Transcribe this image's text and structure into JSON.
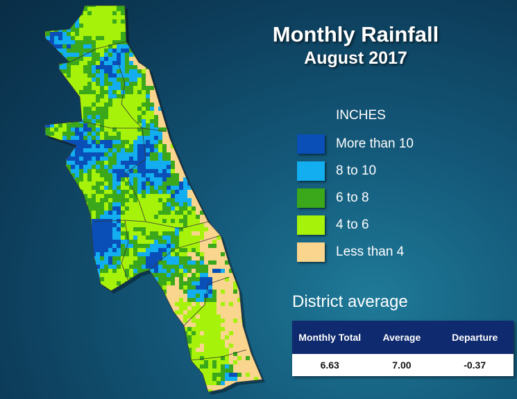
{
  "title": "Monthly Rainfall",
  "subtitle": "August 2017",
  "legend": {
    "heading": "INCHES",
    "items": [
      {
        "label": "More than 10",
        "color": "#0a4fb8"
      },
      {
        "label": "8 to 10",
        "color": "#12aef0"
      },
      {
        "label": "6 to 8",
        "color": "#3aa81a"
      },
      {
        "label": "4 to 6",
        "color": "#a6f20a"
      },
      {
        "label": "Less than 4",
        "color": "#fad58e"
      }
    ]
  },
  "district_average": {
    "heading": "District average",
    "columns": [
      "Monthly Total",
      "Average",
      "Departure"
    ],
    "values": [
      "6.63",
      "7.00",
      "-0.37"
    ]
  },
  "map": {
    "boundary_color": "#333333"
  }
}
